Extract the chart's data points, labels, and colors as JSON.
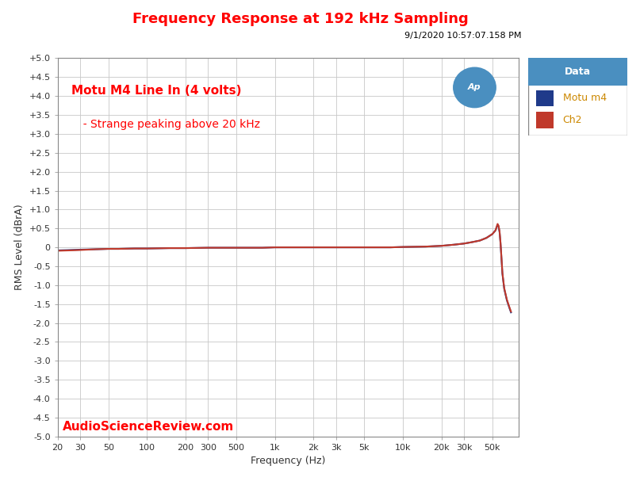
{
  "title": "Frequency Response at 192 kHz Sampling",
  "title_color": "#FF0000",
  "subtitle": "9/1/2020 10:57:07.158 PM",
  "subtitle_color": "#000000",
  "annotation1": "Motu M4 Line In (4 volts)",
  "annotation2": "  - Strange peaking above 20 kHz",
  "annotation_color": "#FF0000",
  "watermark": "AudioScienceReview.com",
  "watermark_color": "#FF0000",
  "xlabel": "Frequency (Hz)",
  "ylabel": "RMS Level (dBrA)",
  "xlim_log": [
    20,
    80000
  ],
  "ylim": [
    -5.0,
    5.0
  ],
  "yticks": [
    -5.0,
    -4.5,
    -4.0,
    -3.5,
    -3.0,
    -2.5,
    -2.0,
    -1.5,
    -1.0,
    -0.5,
    0.0,
    0.5,
    1.0,
    1.5,
    2.0,
    2.5,
    3.0,
    3.5,
    4.0,
    4.5,
    5.0
  ],
  "ytick_labels": [
    "-5.0",
    "-4.5",
    "-4.0",
    "-3.5",
    "-3.0",
    "-2.5",
    "-2.0",
    "-1.5",
    "-1.0",
    "-0.5",
    "0",
    "+0.5",
    "+1.0",
    "+1.5",
    "+2.0",
    "+2.5",
    "+3.0",
    "+3.5",
    "+4.0",
    "+4.5",
    "+5.0"
  ],
  "xtick_positions": [
    20,
    30,
    50,
    100,
    200,
    300,
    500,
    1000,
    2000,
    3000,
    5000,
    10000,
    20000,
    30000,
    50000
  ],
  "xtick_labels": [
    "20",
    "30",
    "50",
    "100",
    "200",
    "300",
    "500",
    "1k",
    "2k",
    "3k",
    "5k",
    "10k",
    "20k",
    "30k",
    "50k"
  ],
  "grid_color": "#C8C8C8",
  "fig_bg_color": "#FFFFFF",
  "plot_bg_color": "#FFFFFF",
  "legend_title": "Data",
  "legend_title_bg": "#4A8FC0",
  "legend_title_color": "#FFFFFF",
  "legend_border_color": "#888888",
  "series": [
    {
      "label": "Motu m4",
      "color": "#1F3A8A",
      "linewidth": 1.5,
      "freq": [
        20,
        25,
        30,
        40,
        50,
        60,
        80,
        100,
        150,
        200,
        300,
        500,
        800,
        1000,
        2000,
        3000,
        5000,
        8000,
        10000,
        15000,
        20000,
        25000,
        30000,
        35000,
        40000,
        45000,
        50000,
        53000,
        55000,
        56000,
        57000,
        58000,
        59000,
        60000,
        62000,
        65000,
        68000,
        70000
      ],
      "db": [
        -0.08,
        -0.07,
        -0.06,
        -0.05,
        -0.04,
        -0.04,
        -0.03,
        -0.03,
        -0.02,
        -0.02,
        -0.01,
        -0.01,
        -0.01,
        0.0,
        0.0,
        0.0,
        0.0,
        0.0,
        0.01,
        0.02,
        0.04,
        0.07,
        0.1,
        0.14,
        0.18,
        0.25,
        0.35,
        0.45,
        0.6,
        0.55,
        0.4,
        0.1,
        -0.3,
        -0.7,
        -1.1,
        -1.4,
        -1.6,
        -1.72
      ]
    },
    {
      "label": "Ch2",
      "color": "#C0392B",
      "linewidth": 1.5,
      "freq": [
        20,
        25,
        30,
        40,
        50,
        60,
        80,
        100,
        150,
        200,
        300,
        500,
        800,
        1000,
        2000,
        3000,
        5000,
        8000,
        10000,
        15000,
        20000,
        25000,
        30000,
        35000,
        40000,
        45000,
        50000,
        53000,
        55000,
        56000,
        57000,
        58000,
        59000,
        60000,
        62000,
        65000,
        68000,
        70000
      ],
      "db": [
        -0.09,
        -0.08,
        -0.07,
        -0.05,
        -0.04,
        -0.04,
        -0.03,
        -0.03,
        -0.02,
        -0.02,
        -0.01,
        -0.01,
        -0.01,
        0.0,
        0.0,
        0.0,
        0.0,
        0.0,
        0.01,
        0.02,
        0.04,
        0.07,
        0.1,
        0.14,
        0.18,
        0.25,
        0.35,
        0.45,
        0.62,
        0.57,
        0.42,
        0.12,
        -0.28,
        -0.68,
        -1.08,
        -1.38,
        -1.58,
        -1.7
      ]
    }
  ],
  "ap_logo_color": "#4A8FC0"
}
